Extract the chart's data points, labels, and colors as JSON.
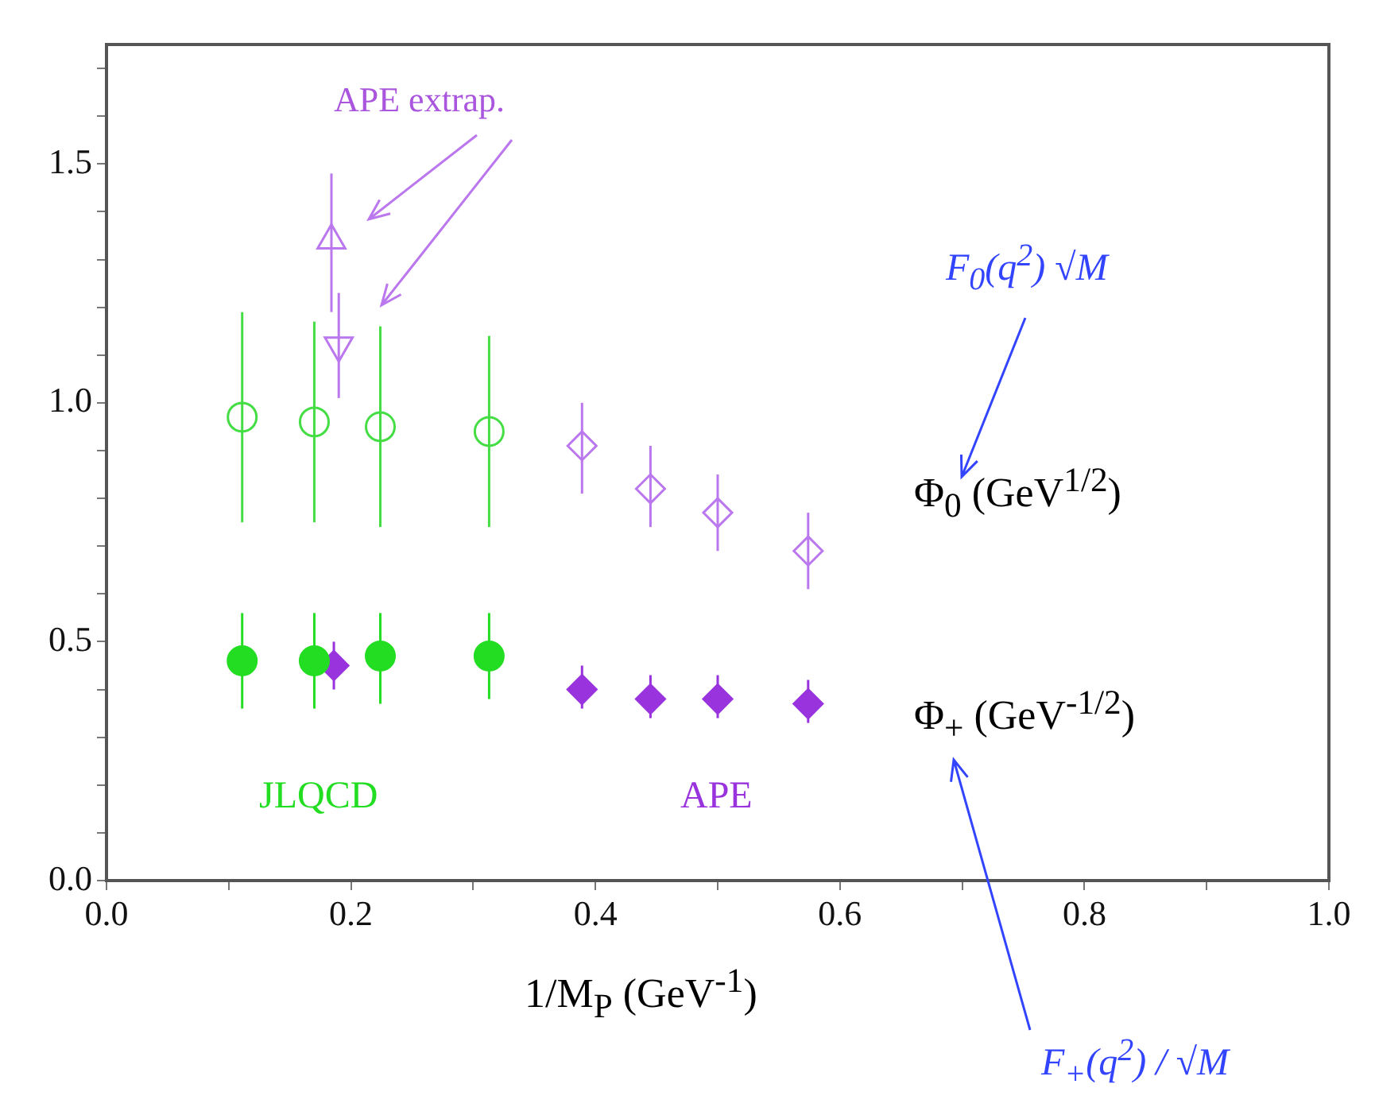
{
  "chart_data": {
    "type": "scatter",
    "xlabel": "1/M$_{P}$ (GeV$^{-1}$)",
    "xlim": [
      0,
      1
    ],
    "xticks": [
      {
        "value": 0,
        "label": "0.0"
      },
      {
        "value": 0.1,
        "label": null
      },
      0.2,
      {
        "value": 0.3,
        "label": null
      },
      0.4,
      {
        "value": 0.5,
        "label": null
      },
      0.6,
      {
        "value": 0.7,
        "label": null
      },
      0.8,
      {
        "value": 0.9,
        "label": null
      },
      {
        "value": 1,
        "label": "1.0"
      }
    ],
    "ylim": [
      0,
      1.75
    ],
    "yticks": [
      {
        "value": 0,
        "label": "0.0"
      },
      {
        "value": 0.1,
        "label": null
      },
      {
        "value": 0.2,
        "label": null
      },
      {
        "value": 0.3,
        "label": null
      },
      {
        "value": 0.4,
        "label": null
      },
      0.5,
      {
        "value": 0.6,
        "label": null
      },
      {
        "value": 0.7,
        "label": null
      },
      {
        "value": 0.8,
        "label": null
      },
      {
        "value": 0.9,
        "label": null
      },
      {
        "value": 1,
        "label": "1.0"
      },
      {
        "value": 1.1,
        "label": null
      },
      {
        "value": 1.2,
        "label": null
      },
      {
        "value": 1.3,
        "label": null
      },
      {
        "value": 1.4,
        "label": null
      },
      1.5,
      {
        "value": 1.6,
        "label": null
      },
      {
        "value": 1.7,
        "label": null
      }
    ],
    "grid": false,
    "legend": false,
    "series": [
      {
        "color": "#44dd44",
        "marker": "circle",
        "x": [
          0.111,
          0.17,
          0.224,
          0.313
        ],
        "values": [
          0.97,
          0.96,
          0.95,
          0.94
        ],
        "errors": [
          [
            0.75,
            1.19
          ],
          [
            0.75,
            1.17
          ],
          [
            0.74,
            1.16
          ],
          [
            0.74,
            1.14
          ]
        ]
      },
      {
        "color": "#22dd22",
        "marker": "circle",
        "x": [
          0.111,
          0.17,
          0.224,
          0.313
        ],
        "values": [
          0.46,
          0.46,
          0.47,
          0.47
        ],
        "errors": [
          [
            0.36,
            0.56
          ],
          [
            0.36,
            0.56
          ],
          [
            0.37,
            0.56
          ],
          [
            0.38,
            0.56
          ]
        ]
      },
      {
        "color": "#bb77ee",
        "marker": "triangle",
        "x": [
          0.184
        ],
        "values": [
          1.34
        ],
        "errors": [
          [
            1.19,
            1.48
          ]
        ]
      },
      {
        "color": "#bb77ee",
        "marker": "triangle",
        "x": [
          0.19
        ],
        "values": [
          1.12
        ],
        "errors": [
          [
            1.01,
            1.23
          ]
        ]
      },
      {
        "color": "#bb77ee",
        "marker": "diamond",
        "x": [
          0.389,
          0.445,
          0.5,
          0.574
        ],
        "values": [
          0.91,
          0.82,
          0.77,
          0.69
        ],
        "errors": [
          [
            0.81,
            1.0
          ],
          [
            0.74,
            0.91
          ],
          [
            0.69,
            0.85
          ],
          [
            0.61,
            0.77
          ]
        ]
      },
      {
        "color": "#9933dd",
        "marker": "diamond",
        "x": [
          0.186,
          0.389,
          0.445,
          0.5,
          0.574
        ],
        "values": [
          0.45,
          0.4,
          0.38,
          0.38,
          0.37
        ],
        "errors": [
          [
            0.4,
            0.5
          ],
          [
            0.36,
            0.45
          ],
          [
            0.34,
            0.43
          ],
          [
            0.34,
            0.43
          ],
          [
            0.33,
            0.42
          ]
        ]
      }
    ],
    "annotations": [
      "APE extrap.",
      "JLQCD",
      "APE",
      "Φ$_{0}$ (GeV$^{1/2}$)",
      "Φ$_{+}$ (GeV$^{-1/2}$)",
      "F$_{0}$(q$^{2}$) √M",
      "F$_{+}$(q$^{2}$) / √M"
    ]
  }
}
